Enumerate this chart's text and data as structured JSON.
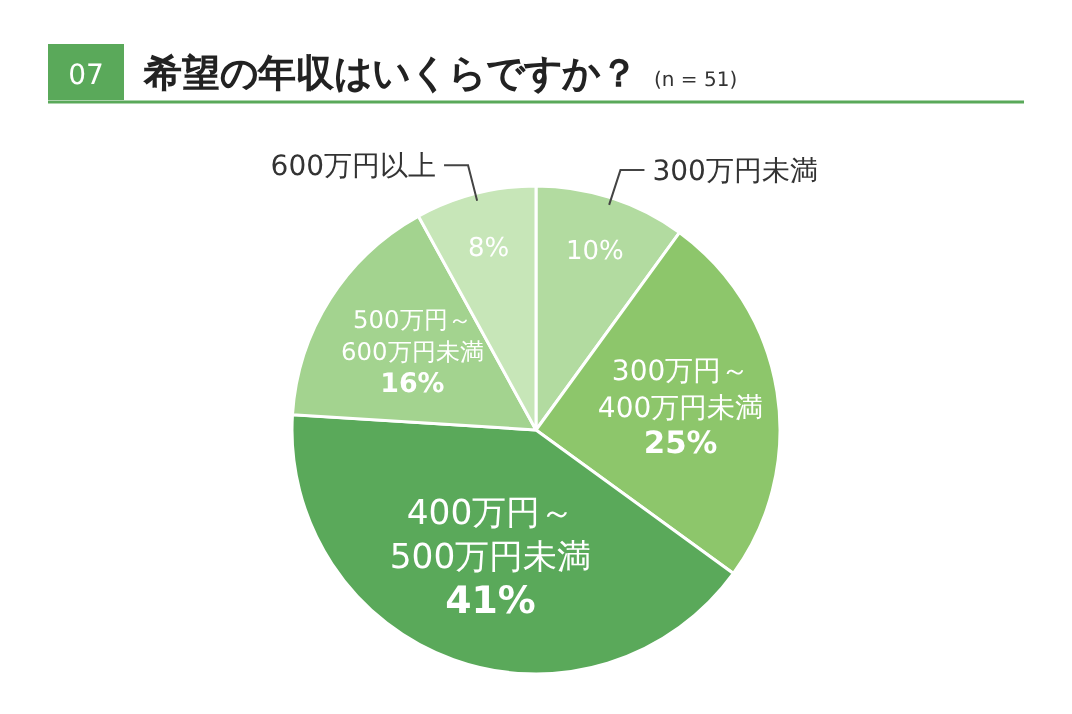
{
  "chart_data": {
    "type": "pie",
    "title": "希望の年収はいくらですか？",
    "subtitle": "(n = 51)",
    "annotations": [
      "07"
    ],
    "categories": [
      "300万円未満",
      "300万円～400万円未満",
      "400万円～500万円未満",
      "500万円～600万円未満",
      "600万円以上"
    ],
    "values": [
      10,
      25,
      41,
      16,
      8
    ],
    "colors": [
      "#b2dba0",
      "#8dc66b",
      "#5aa95a",
      "#a3d38f",
      "#c7e6b8"
    ],
    "value_labels": [
      "10%",
      "25%",
      "41%",
      "16%",
      "8%"
    ]
  }
}
